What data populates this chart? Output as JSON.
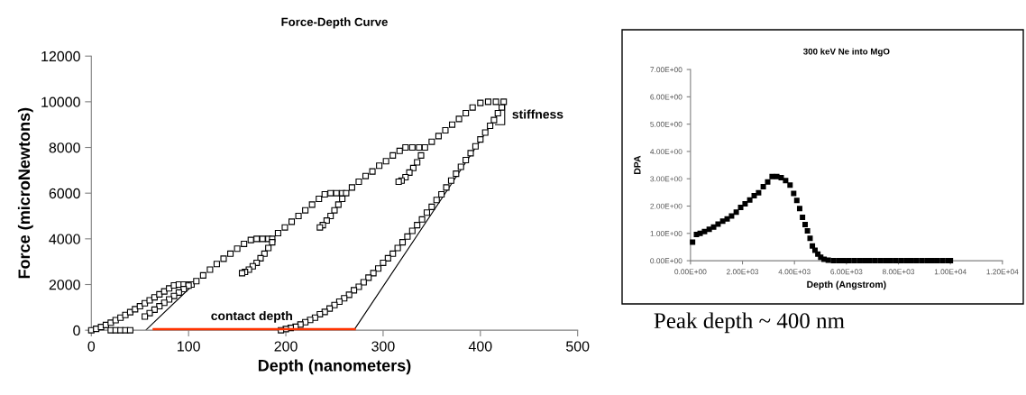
{
  "chart_data": [
    {
      "type": "scatter",
      "title": "Force-Depth Curve",
      "xlabel": "Depth (nanometers)",
      "ylabel": "Force (microNewtons)",
      "grid": false,
      "xlim": [
        0,
        500
      ],
      "xticks": [
        0,
        100,
        200,
        300,
        400,
        500
      ],
      "ylim": [
        0,
        12000
      ],
      "yticks": [
        0,
        2000,
        4000,
        6000,
        8000,
        10000,
        12000
      ],
      "annotations": [
        {
          "text": "contact depth",
          "x": 165,
          "y": 0
        },
        "stiffness"
      ],
      "series": [
        {
          "marker": "square",
          "color": "#000000",
          "x": [
            0,
            5,
            10,
            15,
            20,
            25,
            30,
            35,
            40,
            45,
            50,
            55,
            60,
            65,
            70,
            75,
            80,
            85,
            90,
            95,
            100,
            103,
            100,
            95,
            90,
            85,
            80,
            75,
            70,
            65,
            60,
            55,
            20,
            25,
            30,
            35,
            40,
            108,
            115,
            122,
            129,
            136,
            143,
            150,
            157,
            164,
            170,
            176,
            182,
            186,
            186,
            182,
            178,
            174,
            170,
            166,
            162,
            158,
            155,
            192,
            199,
            206,
            213,
            220,
            227,
            234,
            240,
            246,
            252,
            258,
            262,
            258,
            254,
            250,
            246,
            242,
            238,
            235,
            268,
            275,
            282,
            289,
            296,
            303,
            310,
            317,
            323,
            330,
            337,
            343,
            339,
            335,
            331,
            327,
            323,
            319,
            316,
            350,
            357,
            364,
            371,
            378,
            385,
            392,
            400,
            408,
            416,
            424,
            422,
            418,
            414,
            410,
            405,
            400,
            395,
            390,
            385,
            380,
            375,
            370,
            365,
            360,
            355,
            350,
            345,
            340,
            335,
            330,
            325,
            320,
            315,
            310,
            305,
            300,
            295,
            290,
            285,
            280,
            275,
            270,
            265,
            260,
            255,
            250,
            245,
            240,
            235,
            230,
            225,
            220,
            215,
            210,
            205,
            200,
            195
          ],
          "values": [
            0,
            60,
            140,
            230,
            330,
            440,
            550,
            670,
            790,
            920,
            1050,
            1180,
            1310,
            1440,
            1570,
            1700,
            1830,
            1960,
            2000,
            2000,
            2000,
            2000,
            1950,
            1800,
            1650,
            1500,
            1350,
            1200,
            1050,
            900,
            750,
            600,
            0,
            0,
            0,
            0,
            0,
            2150,
            2400,
            2650,
            2900,
            3130,
            3350,
            3570,
            3780,
            3950,
            4000,
            4000,
            4000,
            4000,
            3850,
            3600,
            3350,
            3150,
            2950,
            2800,
            2650,
            2550,
            2500,
            4250,
            4500,
            4750,
            5000,
            5250,
            5500,
            5750,
            5950,
            6000,
            6000,
            6000,
            6000,
            5750,
            5500,
            5250,
            5000,
            4800,
            4600,
            4500,
            6250,
            6500,
            6750,
            6950,
            7200,
            7400,
            7650,
            7850,
            8000,
            8000,
            8000,
            8000,
            7650,
            7350,
            7100,
            6900,
            6700,
            6550,
            6500,
            8250,
            8500,
            8750,
            9000,
            9250,
            9500,
            9750,
            9950,
            10000,
            10000,
            10000,
            9750,
            9500,
            9200,
            8950,
            8650,
            8350,
            8050,
            7750,
            7450,
            7150,
            6850,
            6550,
            6250,
            5950,
            5700,
            5400,
            5150,
            4850,
            4600,
            4350,
            4100,
            3850,
            3600,
            3350,
            3150,
            2950,
            2700,
            2500,
            2300,
            2100,
            1900,
            1750,
            1550,
            1400,
            1250,
            1100,
            950,
            800,
            700,
            550,
            450,
            350,
            250,
            150,
            100,
            50,
            0
          ]
        },
        {
          "type": "line",
          "marker": "none",
          "color": "#000000",
          "x": [
            56,
            105,
            null,
            270,
            425,
            null,
            415,
            425,
            425
          ],
          "values": [
            0,
            2000,
            null,
            0,
            9900,
            null,
            9000,
            9000,
            9900
          ]
        },
        {
          "type": "line",
          "marker": "none",
          "color": "#ff3300",
          "x": [
            63,
            272
          ],
          "values": [
            0,
            0
          ]
        }
      ]
    },
    {
      "type": "scatter",
      "title": "300 keV Ne into MgO",
      "xlabel": "Depth (Angstrom)",
      "ylabel": "DPA",
      "grid": false,
      "xlim": [
        0,
        12000
      ],
      "xticks": [
        {
          "value": 0,
          "label": "0.00E+00"
        },
        {
          "value": 2000,
          "label": "2.00E+03"
        },
        {
          "value": 4000,
          "label": "4.00E+03"
        },
        {
          "value": 6000,
          "label": "6.00E+03"
        },
        {
          "value": 8000,
          "label": "8.00E+03"
        },
        {
          "value": 10000,
          "label": "1.00E+04"
        },
        {
          "value": 12000,
          "label": "1.20E+04"
        }
      ],
      "ylim": [
        0,
        7
      ],
      "yticks": [
        {
          "value": 0,
          "label": "0.00E+00"
        },
        {
          "value": 1,
          "label": "1.00E+00"
        },
        {
          "value": 2,
          "label": "2.00E+00"
        },
        {
          "value": 3,
          "label": "3.00E+00"
        },
        {
          "value": 4,
          "label": "4.00E+00"
        },
        {
          "value": 5,
          "label": "5.00E+00"
        },
        {
          "value": 6,
          "label": "6.00E+00"
        },
        {
          "value": 7,
          "label": "7.00E+00"
        }
      ],
      "annotations": [
        "Peak depth ~ 400 nm"
      ],
      "series": [
        {
          "marker": "square",
          "color": "#000000",
          "x": [
            80,
            230,
            370,
            540,
            720,
            890,
            1060,
            1240,
            1410,
            1580,
            1760,
            1930,
            2100,
            2280,
            2450,
            2620,
            2800,
            2970,
            3140,
            3320,
            3490,
            3660,
            3830,
            3970,
            4090,
            4200,
            4310,
            4410,
            4500,
            4600,
            4690,
            4790,
            4900,
            5010,
            5140,
            5300,
            5500,
            5700,
            5900,
            6100,
            6300,
            6500,
            6700,
            6900,
            7100,
            7300,
            7500,
            7700,
            7900,
            8100,
            8300,
            8500,
            8700,
            8900,
            9100,
            9300,
            9500,
            9700,
            9900,
            10000
          ],
          "values": [
            0.68,
            0.96,
            1.0,
            1.07,
            1.15,
            1.23,
            1.34,
            1.45,
            1.53,
            1.64,
            1.78,
            1.95,
            2.08,
            2.22,
            2.38,
            2.49,
            2.71,
            2.88,
            3.08,
            3.08,
            3.04,
            2.93,
            2.77,
            2.46,
            2.21,
            1.91,
            1.59,
            1.32,
            1.09,
            0.82,
            0.54,
            0.38,
            0.24,
            0.13,
            0.05,
            0.02,
            0,
            0,
            0,
            0,
            0,
            0,
            0,
            0,
            0,
            0,
            0,
            0,
            0,
            0,
            0,
            0,
            0,
            0,
            0,
            0,
            0,
            0,
            0,
            0
          ]
        }
      ]
    }
  ]
}
